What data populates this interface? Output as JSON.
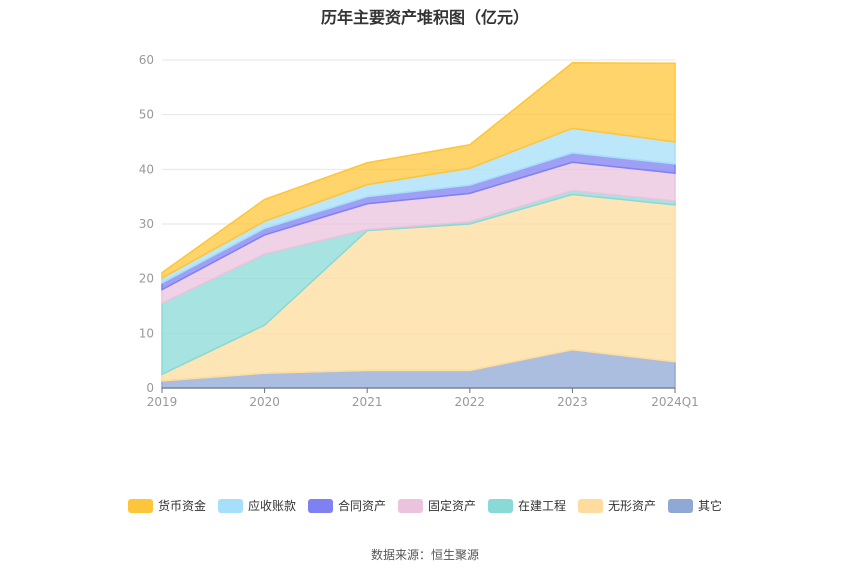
{
  "chart_data": {
    "type": "area",
    "stacked": true,
    "title": "历年主要资产堆积图（亿元）",
    "categories": [
      "2019",
      "2020",
      "2021",
      "2022",
      "2023",
      "2024Q1"
    ],
    "ylim": [
      0,
      60
    ],
    "yticks": [
      0,
      10,
      20,
      30,
      40,
      50,
      60
    ],
    "grid": true,
    "legend_position": "bottom",
    "series": [
      {
        "name": "其它",
        "color": "#8fa8d6",
        "values": [
          1.3,
          2.7,
          3.2,
          3.2,
          7.0,
          4.8
        ]
      },
      {
        "name": "无形资产",
        "color": "#fddc9e",
        "values": [
          1.2,
          8.8,
          25.6,
          26.8,
          28.4,
          28.7
        ]
      },
      {
        "name": "在建工程",
        "color": "#89d9d6",
        "values": [
          13.0,
          13.0,
          0.2,
          0.4,
          0.7,
          0.7
        ]
      },
      {
        "name": "固定资产",
        "color": "#ebc3de",
        "values": [
          2.5,
          3.5,
          4.7,
          5.2,
          5.2,
          5.1
        ]
      },
      {
        "name": "合同资产",
        "color": "#7f80f2",
        "values": [
          1.2,
          1.2,
          1.3,
          1.5,
          1.7,
          1.7
        ]
      },
      {
        "name": "应收账款",
        "color": "#a6dff9",
        "values": [
          0.9,
          1.3,
          2.2,
          3.1,
          4.5,
          4.0
        ]
      },
      {
        "name": "货币资金",
        "color": "#fdc539",
        "values": [
          1.0,
          4.0,
          4.0,
          4.3,
          12.0,
          14.4
        ]
      }
    ]
  },
  "legend_order": [
    "货币资金",
    "应收账款",
    "合同资产",
    "固定资产",
    "在建工程",
    "无形资产",
    "其它"
  ],
  "source_text": "数据来源：恒生聚源"
}
